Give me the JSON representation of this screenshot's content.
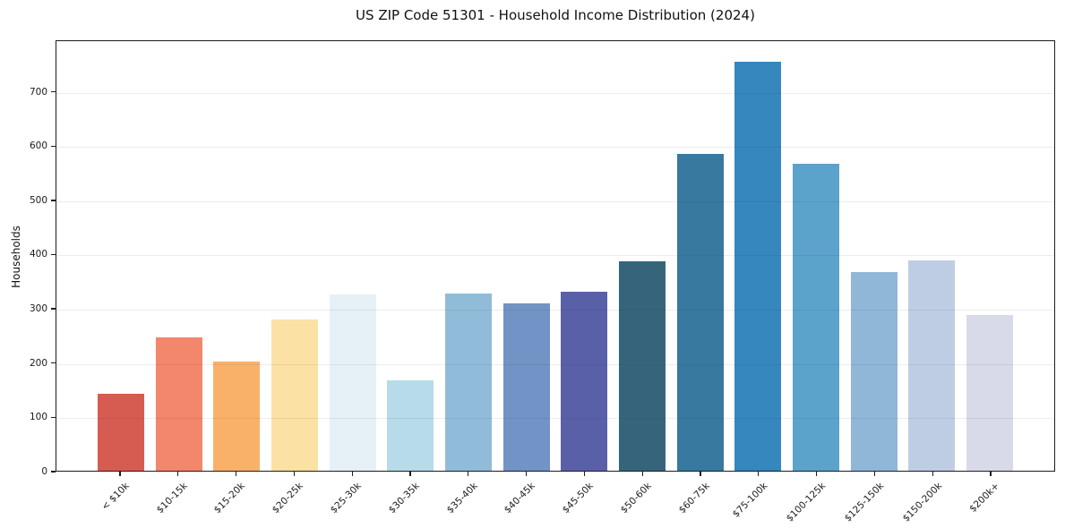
{
  "chart_data": {
    "type": "bar",
    "title": "US ZIP Code 51301 - Household Income Distribution (2024)",
    "xlabel": "",
    "ylabel": "Households",
    "categories": [
      "< $10k",
      "$10-15k",
      "$15-20k",
      "$20-25k",
      "$25-30k",
      "$30-35k",
      "$35-40k",
      "$40-45k",
      "$45-50k",
      "$50-60k",
      "$60-75k",
      "$75-100k",
      "$100-125k",
      "$125-150k",
      "$150-200k",
      "$200k+"
    ],
    "values": [
      143,
      247,
      202,
      280,
      326,
      167,
      328,
      310,
      331,
      387,
      586,
      757,
      568,
      368,
      390,
      289
    ],
    "bar_colors": [
      "#d65c52",
      "#f3876b",
      "#f9b169",
      "#fce1a4",
      "#e6f1f6",
      "#b7dbe8",
      "#91bcd9",
      "#7193c5",
      "#5a60a8",
      "#36657b",
      "#37799f",
      "#3587bd",
      "#5ba3cb",
      "#90b7d8",
      "#bfcde4",
      "#d9dae9"
    ],
    "ylim": [
      0,
      795
    ],
    "yticks": [
      0,
      100,
      200,
      300,
      400,
      500,
      600,
      700
    ],
    "grid": "horizontal",
    "legend": "none",
    "frame": "full-box",
    "x_tick_rotation_deg": 45
  }
}
